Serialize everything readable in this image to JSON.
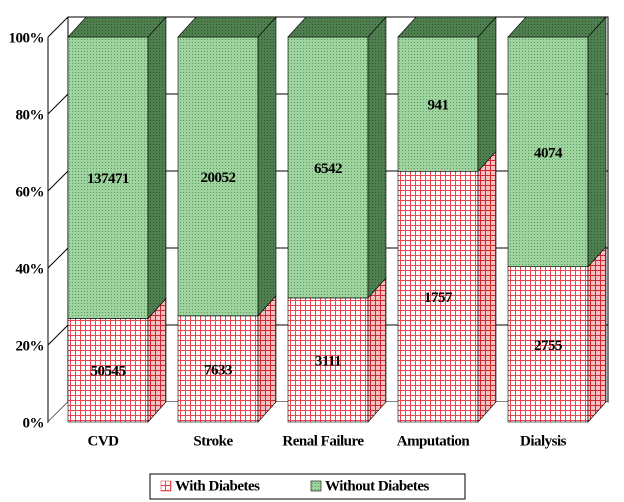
{
  "chart_data": {
    "type": "bar",
    "stacking": "percent",
    "categories": [
      "CVD",
      "Stroke",
      "Renal Failure",
      "Amputation",
      "Dialysis"
    ],
    "series": [
      {
        "name": "With Diabetes",
        "color": "#e8464e",
        "values": [
          50545,
          7633,
          3111,
          1757,
          2755
        ]
      },
      {
        "name": "Without Diabetes",
        "color": "#8fcb8f",
        "values": [
          137471,
          20052,
          6542,
          941,
          4074
        ]
      }
    ],
    "ylim": [
      0,
      100
    ],
    "yticks": [
      {
        "value": 0,
        "label": "0%"
      },
      {
        "value": 20,
        "label": "20%"
      },
      {
        "value": 40,
        "label": "40%"
      },
      {
        "value": 60,
        "label": "60%"
      },
      {
        "value": 80,
        "label": "80%"
      },
      {
        "value": 100,
        "label": "100%"
      }
    ],
    "grid": true,
    "legend": "bottom"
  }
}
